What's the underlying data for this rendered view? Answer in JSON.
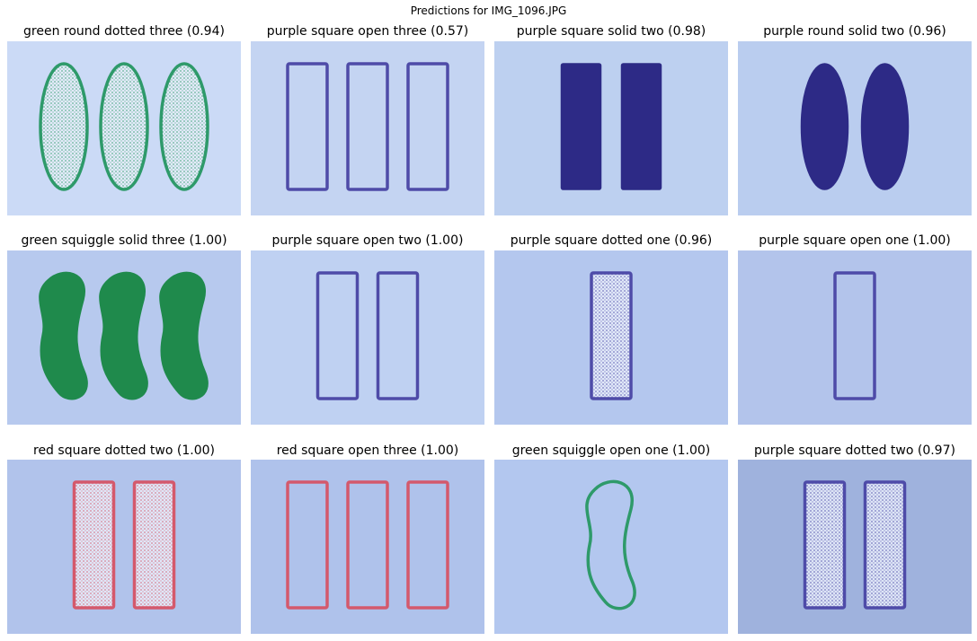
{
  "figure_title": "Predictions for IMG_1096.JPG",
  "panels": [
    {
      "title": "green round dotted three (0.94)",
      "color": "green",
      "shape": "round",
      "fill": "dotted",
      "count": 3,
      "bg": "#cbdaf6"
    },
    {
      "title": "purple square open three (0.57)",
      "color": "purple",
      "shape": "square",
      "fill": "open",
      "count": 3,
      "bg": "#c4d4f2"
    },
    {
      "title": "purple square solid two (0.98)",
      "color": "purple",
      "shape": "square",
      "fill": "solid",
      "count": 2,
      "bg": "#bdd0f0"
    },
    {
      "title": "purple round solid two (0.96)",
      "color": "purple",
      "shape": "round",
      "fill": "solid",
      "count": 2,
      "bg": "#bacdef"
    },
    {
      "title": "green squiggle solid three (1.00)",
      "color": "green",
      "shape": "squiggle",
      "fill": "solid",
      "count": 3,
      "bg": "#b7c9ee"
    },
    {
      "title": "purple square open two (1.00)",
      "color": "purple",
      "shape": "square",
      "fill": "open",
      "count": 2,
      "bg": "#bfd1f2"
    },
    {
      "title": "purple square dotted one (0.96)",
      "color": "purple",
      "shape": "square",
      "fill": "dotted",
      "count": 1,
      "bg": "#b4c7ee"
    },
    {
      "title": "purple square open one (1.00)",
      "color": "purple",
      "shape": "square",
      "fill": "open",
      "count": 1,
      "bg": "#b3c4eb"
    },
    {
      "title": "red square dotted two (1.00)",
      "color": "red",
      "shape": "square",
      "fill": "dotted",
      "count": 2,
      "bg": "#b1c3eb"
    },
    {
      "title": "red square open three (1.00)",
      "color": "red",
      "shape": "square",
      "fill": "open",
      "count": 3,
      "bg": "#afc2eb"
    },
    {
      "title": "green squiggle open one (1.00)",
      "color": "green",
      "shape": "squiggle",
      "fill": "open",
      "count": 1,
      "bg": "#b3c7ef"
    },
    {
      "title": "purple square dotted two (0.97)",
      "color": "purple",
      "shape": "square",
      "fill": "dotted",
      "count": 2,
      "bg": "#9fb2dd"
    }
  ],
  "colors": {
    "green": "#2e9a6a",
    "green_solid": "#1f8a4c",
    "purple": "#4e4ba8",
    "purple_solid": "#2d2a86",
    "red": "#d4596c"
  }
}
